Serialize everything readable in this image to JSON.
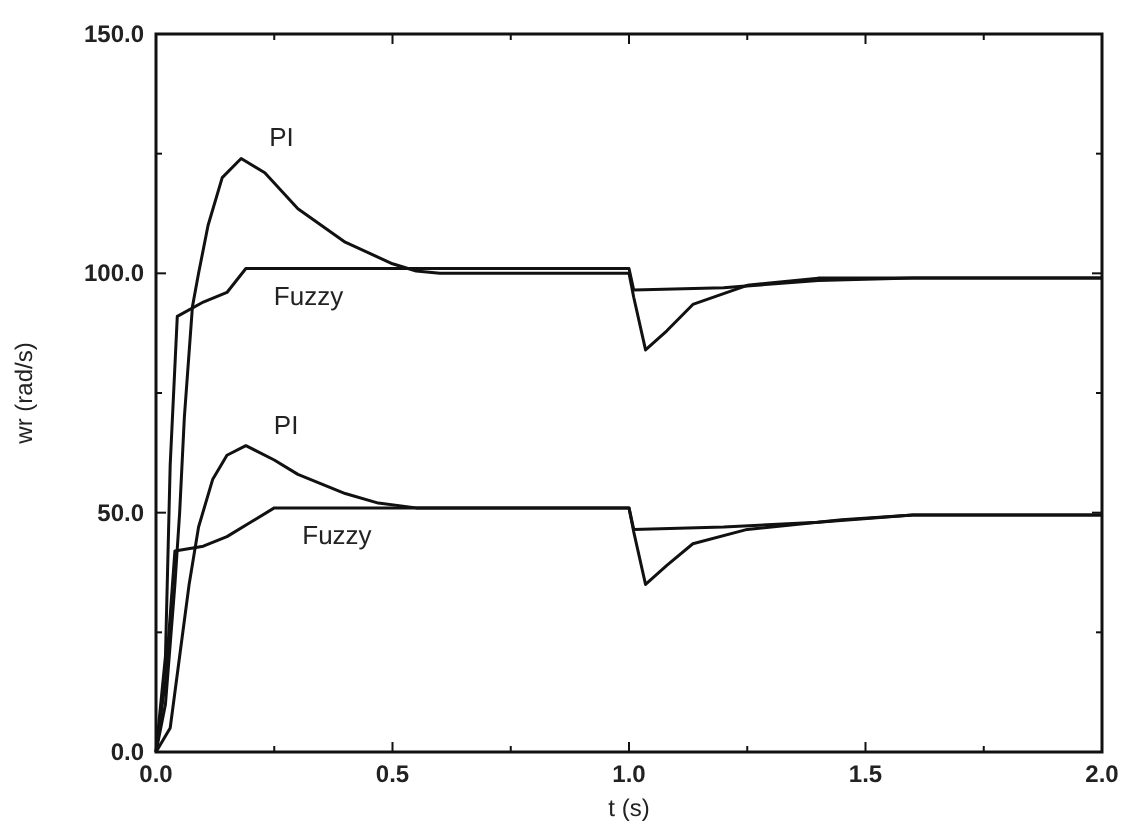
{
  "chart_data": {
    "type": "line",
    "xlabel": "t (s)",
    "ylabel": "wr (rad/s)",
    "xlim": [
      0,
      2
    ],
    "ylim": [
      0,
      150
    ],
    "xticks": [
      {
        "value": 0,
        "label": "0.0"
      },
      {
        "value": 0.25,
        "label": null
      },
      {
        "value": 0.5,
        "label": "0.5"
      },
      {
        "value": 0.75,
        "label": null
      },
      {
        "value": 1,
        "label": "1.0"
      },
      {
        "value": 1.25,
        "label": null
      },
      {
        "value": 1.5,
        "label": "1.5"
      },
      {
        "value": 1.75,
        "label": null
      },
      {
        "value": 2,
        "label": "2.0"
      }
    ],
    "yticks": [
      {
        "value": 0,
        "label": "0.0"
      },
      {
        "value": 25,
        "label": null
      },
      {
        "value": 50,
        "label": "50.0"
      },
      {
        "value": 75,
        "label": null
      },
      {
        "value": 100,
        "label": "100.0"
      },
      {
        "value": 125,
        "label": null
      },
      {
        "value": 150,
        "label": "150.0"
      }
    ],
    "grid": false,
    "marker": "none",
    "line_style": "solid",
    "series": [
      {
        "name": "PI",
        "color": "#111111",
        "x": [
          0,
          0.02,
          0.04,
          0.05,
          0.06,
          0.077,
          0.09,
          0.11,
          0.14,
          0.18,
          0.23,
          0.3,
          0.4,
          0.5,
          0.55,
          0.6,
          1.0,
          1.01,
          1.035,
          1.08,
          1.135,
          1.25,
          1.4,
          1.6,
          2.0
        ],
        "values": [
          0,
          10,
          35,
          50,
          70,
          93,
          100,
          110,
          120,
          124,
          121,
          113.5,
          106.5,
          102,
          100.5,
          100,
          100,
          95,
          84,
          88,
          93.5,
          97.5,
          99,
          99,
          99
        ]
      },
      {
        "name": "Fuzzy",
        "color": "#111111",
        "x": [
          0,
          0.02,
          0.03,
          0.045,
          0.1,
          0.15,
          0.19,
          0.25,
          0.6,
          1.0,
          1.01,
          1.2,
          1.4,
          1.6,
          2.0
        ],
        "values": [
          0,
          20,
          60,
          91,
          94,
          96,
          101,
          101,
          101,
          101,
          96.5,
          97,
          98.5,
          99,
          99
        ]
      },
      {
        "name": "PI",
        "color": "#111111",
        "x": [
          0,
          0.03,
          0.05,
          0.07,
          0.09,
          0.12,
          0.15,
          0.19,
          0.25,
          0.3,
          0.4,
          0.47,
          0.55,
          1.0,
          1.01,
          1.035,
          1.08,
          1.135,
          1.25,
          1.45,
          1.6,
          2.0
        ],
        "values": [
          0,
          5,
          20,
          35,
          47,
          57,
          62,
          64,
          61,
          58,
          54,
          52,
          51,
          51,
          46,
          35,
          39,
          43.5,
          46.5,
          48.5,
          49.5,
          49.5
        ]
      },
      {
        "name": "Fuzzy",
        "color": "#111111",
        "x": [
          0,
          0.02,
          0.04,
          0.1,
          0.15,
          0.2,
          0.25,
          0.6,
          1.0,
          1.01,
          1.2,
          1.4,
          1.6,
          2.0
        ],
        "values": [
          0,
          15,
          42,
          43,
          45,
          48,
          51,
          51,
          51,
          46.5,
          47,
          48,
          49.5,
          49.5
        ]
      }
    ]
  }
}
